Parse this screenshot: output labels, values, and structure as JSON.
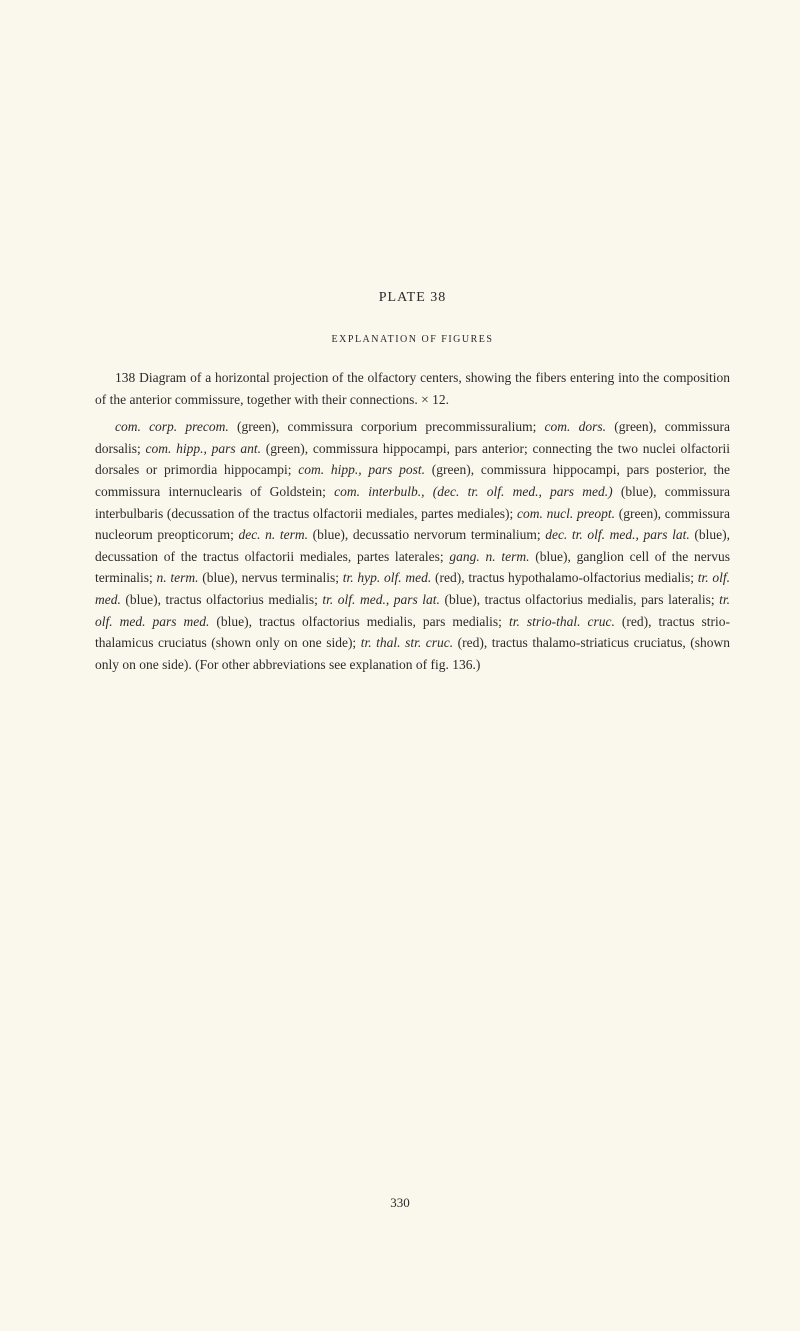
{
  "plate_title": "PLATE 38",
  "subtitle": "EXPLANATION OF FIGURES",
  "paragraph1_prefix": "138   Diagram of a horizontal projection of the olfactory centers, showing the fibers entering into the composition of the anterior commissure, together with their connections.   × 12.",
  "paragraph2": {
    "t1": "com. corp. precom.",
    "t2": " (green), commissura corporium precommissuralium; ",
    "t3": "com. dors.",
    "t4": " (green), commissura dorsalis; ",
    "t5": "com. hipp., pars ant.",
    "t6": " (green), commissura hippocampi, pars anterior; connecting the two nuclei olfactorii dorsales or primordia hippocampi; ",
    "t7": "com. hipp., pars post.",
    "t8": " (green), commissura hippocampi, pars posterior, the commissura internuclearis of Goldstein; ",
    "t9": "com. interbulb., (dec. tr. olf. med., pars med.)",
    "t10": " (blue), commissura interbulbaris (decussation of the tractus olfactorii mediales, partes mediales); ",
    "t11": "com. nucl. preopt.",
    "t12": " (green), commissura nucleorum preopticorum; ",
    "t13": "dec. n. term.",
    "t14": " (blue), decussatio nervorum terminalium; ",
    "t15": "dec. tr. olf. med., pars lat.",
    "t16": " (blue), decussation of the tractus olfactorii mediales, partes laterales; ",
    "t17": "gang. n. term.",
    "t18": " (blue), ganglion cell of the nervus terminalis; ",
    "t19": "n. term.",
    "t20": " (blue), nervus terminalis; ",
    "t21": "tr. hyp. olf. med.",
    "t22": " (red), tractus hypothalamo-olfactorius medialis; ",
    "t23": "tr. olf. med.",
    "t24": " (blue), tractus olfactorius medialis; ",
    "t25": "tr. olf. med., pars lat.",
    "t26": " (blue), tractus olfactorius medialis, pars lateralis; ",
    "t27": "tr. olf. med. pars med.",
    "t28": " (blue), tractus olfactorius medialis, pars medialis; ",
    "t29": "tr. strio-thal. cruc.",
    "t30": " (red), tractus strio-thalamicus cruciatus (shown only on one side); ",
    "t31": "tr. thal. str. cruc.",
    "t32": " (red), tractus thalamo-striaticus cruciatus, (shown only on one side). (For other abbreviations see explanation of fig. 136.)"
  },
  "page_number": "330",
  "colors": {
    "background": "#faf8ed",
    "text": "#2a2a2a"
  },
  "typography": {
    "body_font": "Georgia, Times New Roman, serif",
    "body_size": 13.5,
    "title_size": 14,
    "subtitle_size": 10,
    "line_height": 1.6
  }
}
